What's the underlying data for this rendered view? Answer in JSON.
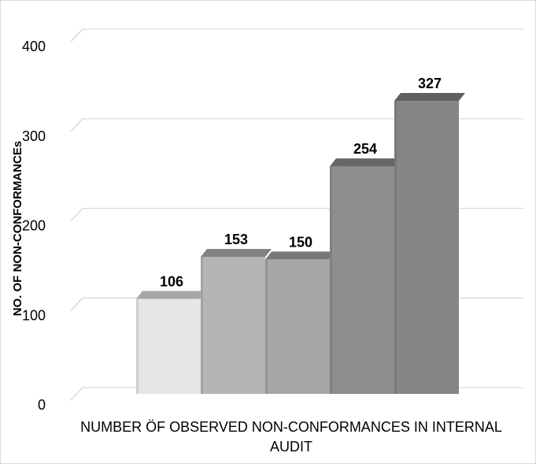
{
  "chart_data": {
    "type": "bar",
    "style": "3d-stepped",
    "categories": [
      "",
      "",
      "",
      "",
      ""
    ],
    "values": [
      106,
      153,
      150,
      254,
      327
    ],
    "data_labels": [
      "106",
      "153",
      "150",
      "254",
      "327"
    ],
    "bar_colors": [
      "#e6e6e6",
      "#b5b5b5",
      "#a6a6a6",
      "#8e8e8e",
      "#858585"
    ],
    "title": "",
    "xlabel": "NUMBER ÖF OBSERVED NON-CONFORMANCES IN INTERNAL AUDIT",
    "ylabel": "NO. OF NON-CONFORMANCEs",
    "ylim": [
      0,
      400
    ],
    "yticks": [
      "0",
      "100",
      "200",
      "300",
      "400"
    ],
    "grid": true,
    "legend": "none"
  }
}
